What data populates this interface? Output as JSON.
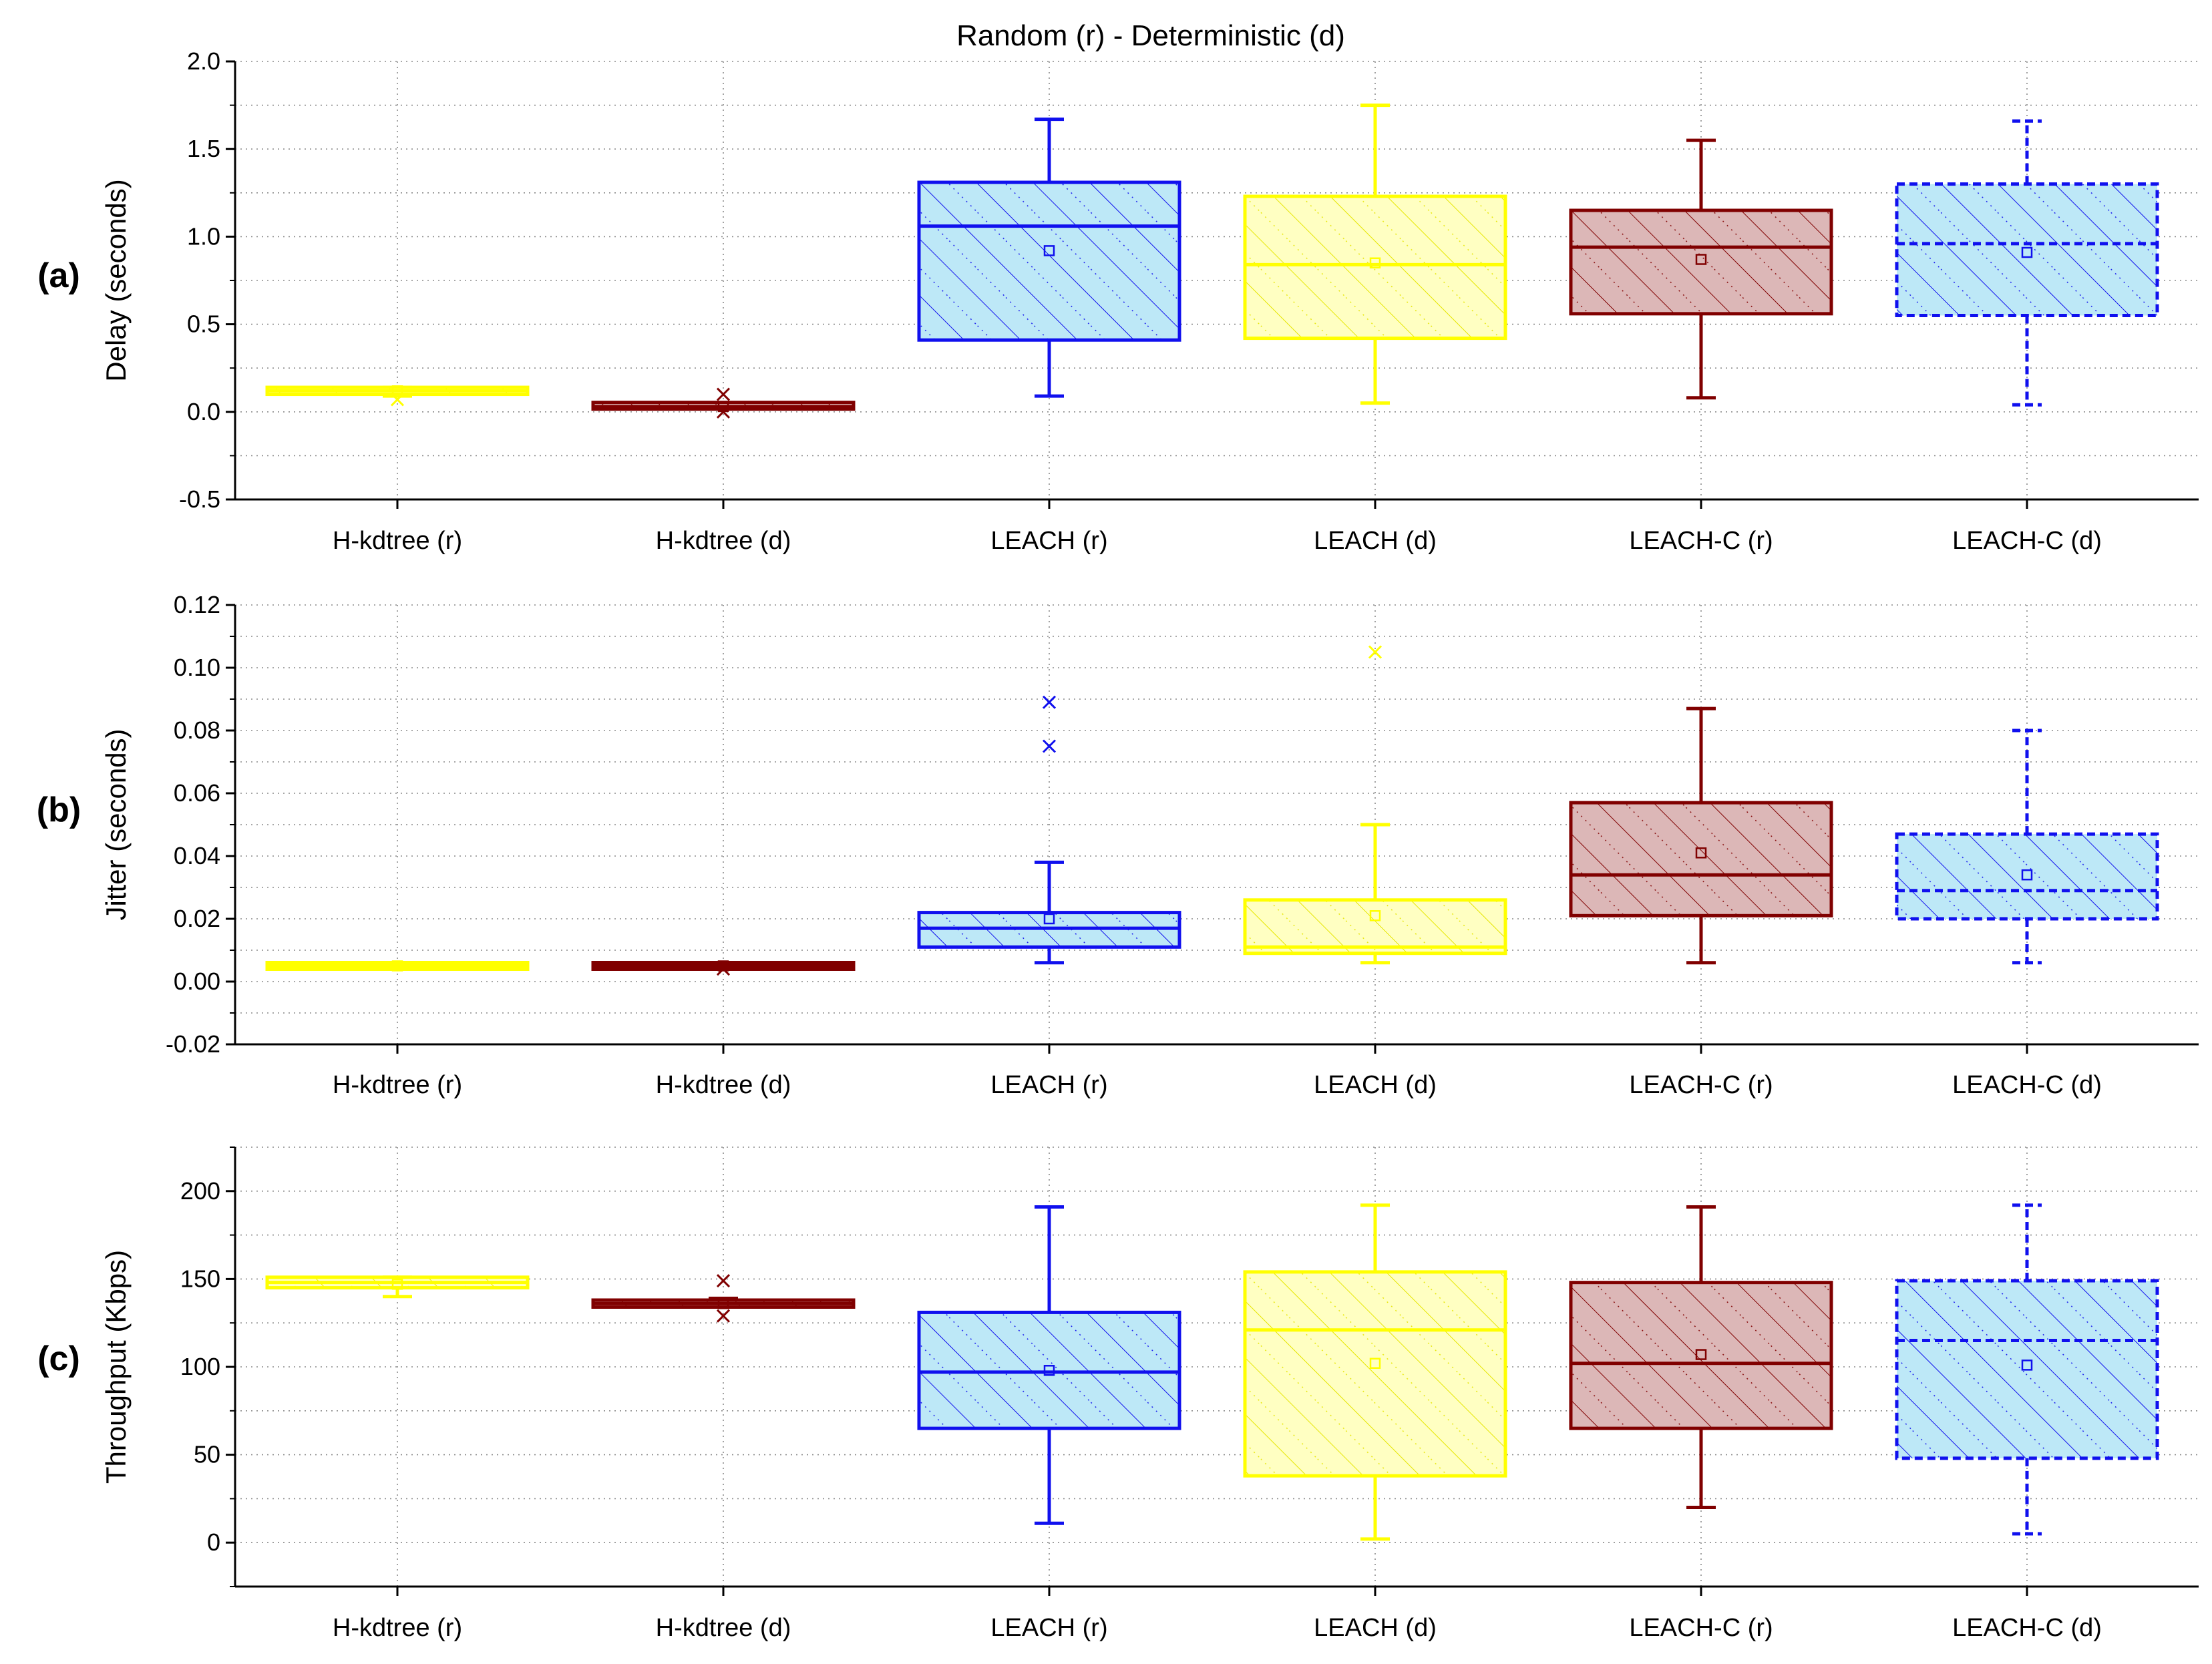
{
  "figure_title": "Random (r) - Deterministic (d)",
  "colors": {
    "blue": "#1010ee",
    "blue_fill": "#bde8f7",
    "yellow": "#ffff00",
    "yellow_fill": "#ffffc2",
    "maroon": "#800000",
    "maroon_fill": "#dcb7b7",
    "grid": "#8a8a8a"
  },
  "chart_data": [
    {
      "type": "box",
      "panel": "(a)",
      "ylabel": "Delay (seconds)",
      "ylim": [
        -0.5,
        2.0
      ],
      "yticks": [
        -0.5,
        0.0,
        0.5,
        1.0,
        1.5,
        2.0
      ],
      "ytick_labels": [
        "-0.5",
        "0.0",
        "0.5",
        "1.0",
        "1.5",
        "2.0"
      ],
      "categories": [
        "H-kdtree (r)",
        "H-kdtree (d)",
        "LEACH (r)",
        "LEACH (d)",
        "LEACH-C (r)",
        "LEACH-C (d)"
      ],
      "boxes": [
        {
          "name": "H-kdtree (r)",
          "style": "yellow",
          "min": 0.09,
          "q1": 0.1,
          "median": 0.12,
          "q3": 0.14,
          "max": 0.14,
          "mean": 0.12,
          "outliers": [
            0.07
          ]
        },
        {
          "name": "H-kdtree (d)",
          "style": "maroon",
          "min": 0.02,
          "q1": 0.02,
          "median": 0.03,
          "q3": 0.05,
          "max": 0.05,
          "mean": 0.03,
          "outliers": [
            0.1,
            0.0
          ]
        },
        {
          "name": "LEACH (r)",
          "style": "blue",
          "min": 0.09,
          "q1": 0.41,
          "median": 1.06,
          "q3": 1.31,
          "max": 1.67,
          "mean": 0.92,
          "outliers": []
        },
        {
          "name": "LEACH (d)",
          "style": "yellow",
          "min": 0.05,
          "q1": 0.42,
          "median": 0.84,
          "q3": 1.23,
          "max": 1.75,
          "mean": 0.85,
          "outliers": []
        },
        {
          "name": "LEACH-C (r)",
          "style": "maroon",
          "min": 0.08,
          "q1": 0.56,
          "median": 0.94,
          "q3": 1.15,
          "max": 1.55,
          "mean": 0.87,
          "outliers": []
        },
        {
          "name": "LEACH-C (d)",
          "style": "blue-dash",
          "min": 0.04,
          "q1": 0.55,
          "median": 0.96,
          "q3": 1.3,
          "max": 1.66,
          "mean": 0.91,
          "outliers": []
        }
      ]
    },
    {
      "type": "box",
      "panel": "(b)",
      "ylabel": "Jitter (seconds)",
      "ylim": [
        -0.02,
        0.12
      ],
      "yticks": [
        -0.02,
        0.0,
        0.02,
        0.04,
        0.06,
        0.08,
        0.1,
        0.12
      ],
      "ytick_labels": [
        "-0.02",
        "0.00",
        "0.02",
        "0.04",
        "0.06",
        "0.08",
        "0.10",
        "0.12"
      ],
      "categories": [
        "H-kdtree (r)",
        "H-kdtree (d)",
        "LEACH (r)",
        "LEACH (d)",
        "LEACH-C (r)",
        "LEACH-C (d)"
      ],
      "boxes": [
        {
          "name": "H-kdtree (r)",
          "style": "yellow",
          "min": 0.005,
          "q1": 0.005,
          "median": 0.005,
          "q3": 0.005,
          "max": 0.005,
          "mean": 0.005,
          "outliers": []
        },
        {
          "name": "H-kdtree (d)",
          "style": "maroon",
          "min": 0.005,
          "q1": 0.005,
          "median": 0.005,
          "q3": 0.005,
          "max": 0.006,
          "mean": 0.005,
          "outliers": [
            0.004
          ]
        },
        {
          "name": "LEACH (r)",
          "style": "blue",
          "min": 0.006,
          "q1": 0.011,
          "median": 0.017,
          "q3": 0.022,
          "max": 0.038,
          "mean": 0.02,
          "outliers": [
            0.075,
            0.089
          ]
        },
        {
          "name": "LEACH (d)",
          "style": "yellow",
          "min": 0.006,
          "q1": 0.009,
          "median": 0.011,
          "q3": 0.026,
          "max": 0.05,
          "mean": 0.021,
          "outliers": [
            0.105
          ]
        },
        {
          "name": "LEACH-C (r)",
          "style": "maroon",
          "min": 0.006,
          "q1": 0.021,
          "median": 0.034,
          "q3": 0.057,
          "max": 0.087,
          "mean": 0.041,
          "outliers": []
        },
        {
          "name": "LEACH-C (d)",
          "style": "blue-dash",
          "min": 0.006,
          "q1": 0.02,
          "median": 0.029,
          "q3": 0.047,
          "max": 0.08,
          "mean": 0.034,
          "outliers": []
        }
      ]
    },
    {
      "type": "box",
      "panel": "(c)",
      "ylabel": "Throughput (Kbps)",
      "ylim": [
        -25,
        225
      ],
      "yticks": [
        0,
        50,
        100,
        150,
        200
      ],
      "ytick_labels": [
        "0",
        "50",
        "100",
        "150",
        "200"
      ],
      "categories": [
        "H-kdtree (r)",
        "H-kdtree (d)",
        "LEACH (r)",
        "LEACH (d)",
        "LEACH-C (r)",
        "LEACH-C (d)"
      ],
      "boxes": [
        {
          "name": "H-kdtree (r)",
          "style": "yellow",
          "min": 140,
          "q1": 145,
          "median": 148,
          "q3": 151,
          "max": 151,
          "mean": 147,
          "outliers": []
        },
        {
          "name": "H-kdtree (d)",
          "style": "maroon",
          "min": 134,
          "q1": 134,
          "median": 136,
          "q3": 138,
          "max": 139,
          "mean": 136,
          "outliers": [
            149,
            129
          ]
        },
        {
          "name": "LEACH (r)",
          "style": "blue",
          "min": 11,
          "q1": 65,
          "median": 97,
          "q3": 131,
          "max": 191,
          "mean": 98,
          "outliers": []
        },
        {
          "name": "LEACH (d)",
          "style": "yellow",
          "min": 2,
          "q1": 38,
          "median": 121,
          "q3": 154,
          "max": 192,
          "mean": 102,
          "outliers": []
        },
        {
          "name": "LEACH-C (r)",
          "style": "maroon",
          "min": 20,
          "q1": 65,
          "median": 102,
          "q3": 148,
          "max": 191,
          "mean": 107,
          "outliers": []
        },
        {
          "name": "LEACH-C (d)",
          "style": "blue-dash",
          "min": 5,
          "q1": 48,
          "median": 115,
          "q3": 149,
          "max": 192,
          "mean": 101,
          "outliers": []
        }
      ]
    }
  ]
}
